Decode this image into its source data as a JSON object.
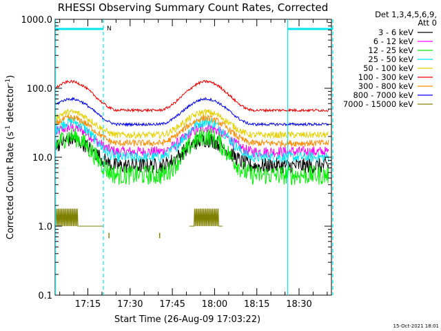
{
  "chart_data": {
    "type": "line",
    "title": "RHESSI Observing Summary Count Rates, Corrected",
    "xlabel": "Start Time (26-Aug-09 17:03:22)",
    "ylabel_main": "Corrected Count Rate (s",
    "ylabel_sup1": "-1",
    "ylabel_mid": " detector",
    "ylabel_sup2": "-1",
    "ylabel_end": ")",
    "yscale": "log",
    "ylim": [
      0.1,
      1000
    ],
    "xlim_minutes": [
      3.37,
      101.5
    ],
    "x_ticks": [
      {
        "minute": 15,
        "label": "17:15"
      },
      {
        "minute": 30,
        "label": "17:30"
      },
      {
        "minute": 45,
        "label": "17:45"
      },
      {
        "minute": 60,
        "label": "18:00"
      },
      {
        "minute": 75,
        "label": "18:15"
      },
      {
        "minute": 90,
        "label": "18:30"
      }
    ],
    "y_ticks": [
      {
        "value": 0.1,
        "label": "0.1"
      },
      {
        "value": 1,
        "label": "1.0"
      },
      {
        "value": 10,
        "label": "10.0"
      },
      {
        "value": 100,
        "label": "100.0"
      },
      {
        "value": 1000,
        "label": "1000.0"
      }
    ],
    "legend_header": [
      "Det 1,3,4,5,6,9,",
      "Att 0"
    ],
    "legend_position": "right",
    "night_start_minutes": [
      3.5,
      86.0
    ],
    "night_end_minutes": [
      20.5,
      102.0
    ],
    "saa_start_minutes": [
      86.0
    ],
    "night_bar_segments": [
      [
        3.5,
        20.5
      ],
      [
        86.0,
        102.0
      ]
    ],
    "flag_label": "N",
    "series": [
      {
        "name": "3 - 6 keV",
        "color": "#000000",
        "day_peak": 18,
        "night_level": 7.5,
        "noise": 0.07
      },
      {
        "name": "6 - 12 keV",
        "color": "#ff00ff",
        "day_peak": 27,
        "night_level": 12,
        "noise": 0.05
      },
      {
        "name": "12 - 25 keV",
        "color": "#00ee00",
        "day_peak": 20,
        "night_level": 5.5,
        "noise": 0.09
      },
      {
        "name": "25 - 50 keV",
        "color": "#00e5ee",
        "day_peak": 33,
        "night_level": 10,
        "noise": 0.05
      },
      {
        "name": "50 - 100 keV",
        "color": "#e5d000",
        "day_peak": 45,
        "night_level": 21,
        "noise": 0.03
      },
      {
        "name": "100 - 300 keV",
        "color": "#ee0000",
        "day_peak": 125,
        "night_level": 48,
        "noise": 0.012
      },
      {
        "name": "300 - 800 keV",
        "color": "#ff8c00",
        "day_peak": 37,
        "night_level": 16,
        "noise": 0.03
      },
      {
        "name": "800 - 7000 keV",
        "color": "#0000ee",
        "day_peak": 70,
        "night_level": 30,
        "noise": 0.012
      },
      {
        "name": "7000 - 15000 keV",
        "color": "#808000",
        "day_peak": 1.8,
        "night_level": 1.0,
        "noise": 0.0
      }
    ],
    "cycle": {
      "peak1_minute": 9,
      "peak2_minute": 57,
      "half_width_minutes": 17
    },
    "grid": false
  },
  "footer": {
    "timestamp": "15-Oct-2021 18:01"
  }
}
